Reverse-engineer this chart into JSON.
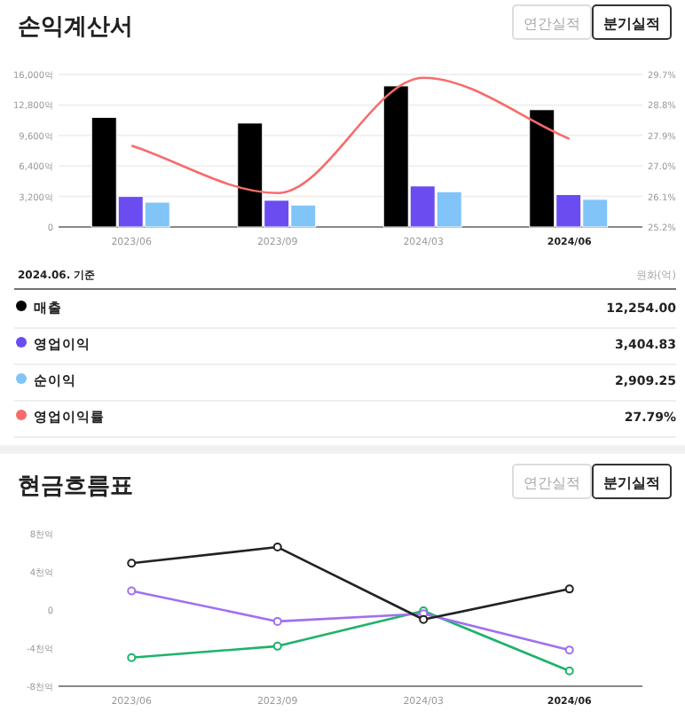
{
  "chart_data": [
    {
      "type": "bar",
      "title": "손익계산서",
      "annotations": [
        "연간실적",
        "분기실적"
      ],
      "categories": [
        "2023/06",
        "2023/09",
        "2024/03",
        "2024/06"
      ],
      "grid": "y",
      "ylim": [
        0,
        16000
      ],
      "yticks": [
        0,
        {
          "value": 3200,
          "label": "3,200억"
        },
        {
          "value": 6400,
          "label": "6,400억"
        },
        {
          "value": 9600,
          "label": "9,600억"
        },
        {
          "value": 12800,
          "label": "12,800억"
        },
        {
          "value": 16000,
          "label": "16,000억"
        }
      ],
      "y2lim": [
        25.2,
        29.7
      ],
      "y2ticks": [
        {
          "value": 25.2,
          "label": "25.2%"
        },
        {
          "value": 26.1,
          "label": "26.1%"
        },
        {
          "value": 27.0,
          "label": "27.0%"
        },
        {
          "value": 27.9,
          "label": "27.9%"
        },
        {
          "value": 28.8,
          "label": "28.8%"
        },
        {
          "value": 29.7,
          "label": "29.7%"
        }
      ],
      "series": [
        {
          "color": "#000000",
          "values": [
            11500,
            10900,
            14800,
            12300
          ]
        },
        {
          "color": "#6a4cf0",
          "values": [
            3200,
            2800,
            4300,
            3400
          ]
        },
        {
          "color": "#80c4f8",
          "values": [
            2600,
            2300,
            3700,
            2900
          ]
        },
        {
          "type": "line",
          "axis": "y2",
          "color": "#f86b6b",
          "marker": "none",
          "values": [
            27.6,
            26.2,
            29.6,
            27.8
          ]
        }
      ]
    },
    {
      "type": "other",
      "title": "2024.06. 기준",
      "annotations": [
        "원화(억)"
      ],
      "categories": [
        "매출",
        "영업이익",
        "순이익",
        "영업이익률"
      ],
      "value_labels": [
        "12,254.00",
        "3,404.83",
        "2,909.25",
        "27.79%"
      ],
      "colors": [
        "#000000",
        "#6a4cf0",
        "#80c4f8",
        "#f86b6b"
      ]
    },
    {
      "type": "line",
      "title": "현금흐름표",
      "annotations": [
        "연간실적",
        "분기실적"
      ],
      "categories": [
        "2023/06",
        "2023/09",
        "2024/03",
        "2024/06"
      ],
      "marker": "circle",
      "line_style": "solid",
      "ylim": [
        -8,
        8
      ],
      "yticks": [
        {
          "value": -8,
          "label": "-8천억"
        },
        {
          "value": -4,
          "label": "-4천억"
        },
        0,
        {
          "value": 4,
          "label": "4천억"
        },
        {
          "value": 8,
          "label": "8천억"
        }
      ],
      "series": [
        {
          "color": "#222222",
          "values": [
            4.9,
            6.6,
            -1.0,
            2.2
          ]
        },
        {
          "color": "#a070f0",
          "values": [
            2.0,
            -1.2,
            -0.4,
            -4.2
          ]
        },
        {
          "color": "#1db36a",
          "values": [
            -5.0,
            -3.8,
            -0.1,
            -6.4
          ]
        }
      ]
    }
  ]
}
